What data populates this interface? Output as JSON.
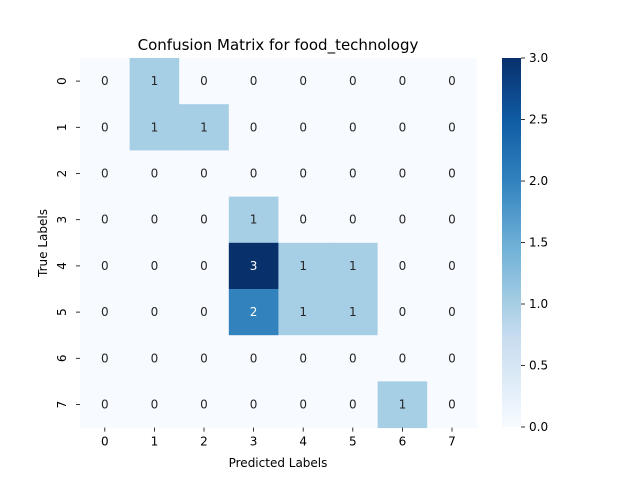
{
  "chart_data": {
    "type": "heatmap",
    "title": "Confusion Matrix for food_technology",
    "xlabel": "Predicted Labels",
    "ylabel": "True Labels",
    "x_categories": [
      "0",
      "1",
      "2",
      "3",
      "4",
      "5",
      "6",
      "7"
    ],
    "y_categories": [
      "0",
      "1",
      "2",
      "3",
      "4",
      "5",
      "6",
      "7"
    ],
    "values": [
      [
        0,
        1,
        0,
        0,
        0,
        0,
        0,
        0
      ],
      [
        0,
        1,
        1,
        0,
        0,
        0,
        0,
        0
      ],
      [
        0,
        0,
        0,
        0,
        0,
        0,
        0,
        0
      ],
      [
        0,
        0,
        0,
        1,
        0,
        0,
        0,
        0
      ],
      [
        0,
        0,
        0,
        3,
        1,
        1,
        0,
        0
      ],
      [
        0,
        0,
        0,
        2,
        1,
        1,
        0,
        0
      ],
      [
        0,
        0,
        0,
        0,
        0,
        0,
        0,
        0
      ],
      [
        0,
        0,
        0,
        0,
        0,
        0,
        1,
        0
      ]
    ],
    "colorbar": {
      "range": [
        0.0,
        3.0
      ],
      "ticks": [
        "0.0",
        "0.5",
        "1.0",
        "1.5",
        "2.0",
        "2.5",
        "3.0"
      ],
      "colormap": "Blues"
    },
    "colors": {
      "low": "#f7fbff",
      "one": "#a6cee4",
      "two": "#3282be",
      "high": "#08306b"
    }
  }
}
